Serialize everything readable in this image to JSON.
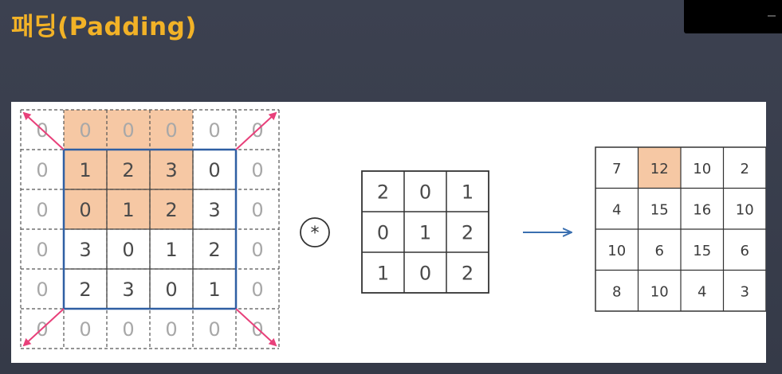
{
  "title": "패딩(Padding)",
  "colors": {
    "title": "#f2b227",
    "highlight": "#f6c8a4",
    "blue_border": "#2f5fa3",
    "arrow_pink": "#e8407a",
    "flow_arrow": "#3a6fb0"
  },
  "input_matrix": {
    "rows": [
      [
        "0",
        "0",
        "0",
        "0",
        "0",
        "0"
      ],
      [
        "0",
        "1",
        "2",
        "3",
        "0",
        "0"
      ],
      [
        "0",
        "0",
        "1",
        "2",
        "3",
        "0"
      ],
      [
        "0",
        "3",
        "0",
        "1",
        "2",
        "0"
      ],
      [
        "0",
        "2",
        "3",
        "0",
        "1",
        "0"
      ],
      [
        "0",
        "0",
        "0",
        "0",
        "0",
        "0"
      ]
    ]
  },
  "operator_symbol": "*",
  "kernel": {
    "rows": [
      [
        "2",
        "0",
        "1"
      ],
      [
        "0",
        "1",
        "2"
      ],
      [
        "1",
        "0",
        "2"
      ]
    ]
  },
  "output_matrix": {
    "rows": [
      [
        "7",
        "12",
        "10",
        "2"
      ],
      [
        "4",
        "15",
        "16",
        "10"
      ],
      [
        "10",
        "6",
        "15",
        "6"
      ],
      [
        "8",
        "10",
        "4",
        "3"
      ]
    ]
  }
}
